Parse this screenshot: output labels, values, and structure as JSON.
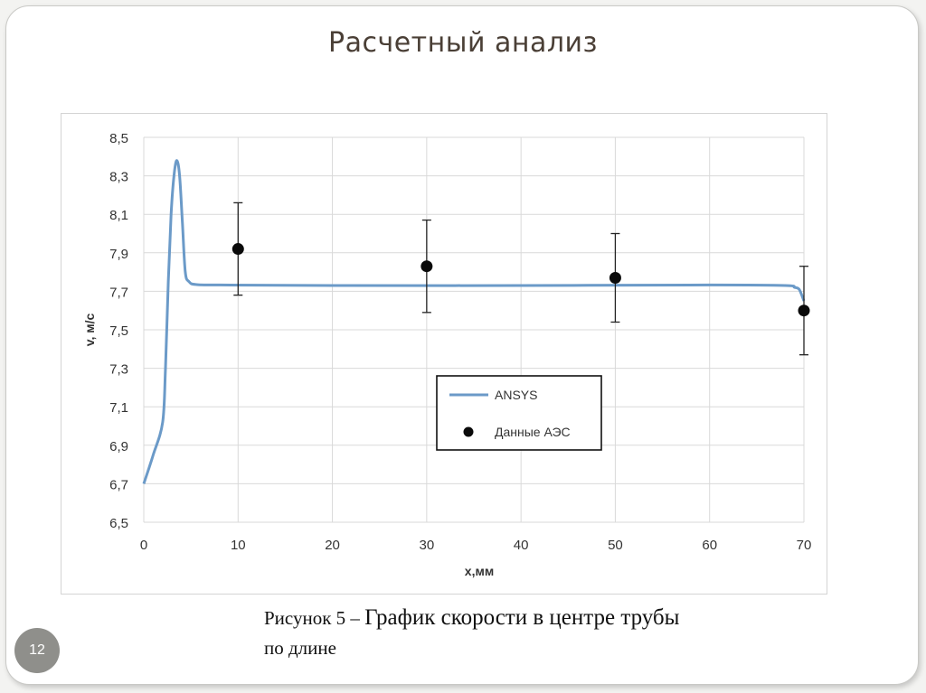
{
  "slide": {
    "title": "Расчетный анализ",
    "page_number": "12",
    "caption_prefix": "Рисунок 5 – ",
    "caption_main": "График скорости в центре трубы",
    "caption_line2": "по длине"
  },
  "colors": {
    "ansys_line": "#6b9ac8",
    "data_points": "#0a0a0a",
    "grid": "#d9d9d9",
    "axis_text": "#333333",
    "title_text": "#4a3f36"
  },
  "chart_data": {
    "type": "line",
    "title": "",
    "xlabel": "x,мм",
    "ylabel": "v, м/с",
    "xlim": [
      0,
      70
    ],
    "ylim": [
      6.5,
      8.5
    ],
    "x_ticks": [
      0,
      10,
      20,
      30,
      40,
      50,
      60,
      70
    ],
    "x_tick_labels": [
      "0",
      "10",
      "20",
      "30",
      "40",
      "50",
      "60",
      "70"
    ],
    "y_ticks": [
      6.5,
      6.7,
      6.9,
      7.1,
      7.3,
      7.5,
      7.7,
      7.9,
      8.1,
      8.3,
      8.5
    ],
    "y_tick_labels": [
      "6,5",
      "6,7",
      "6,9",
      "7,1",
      "7,3",
      "7,5",
      "7,7",
      "7,9",
      "8,1",
      "8,3",
      "8,5"
    ],
    "grid": true,
    "legend_position": "center-right",
    "series": [
      {
        "name": "ANSYS",
        "type": "line",
        "color": "#6b9ac8",
        "x": [
          0,
          1,
          2,
          2.3,
          2.6,
          2.9,
          3.2,
          3.5,
          3.8,
          4.1,
          4.4,
          4.8,
          5.5,
          8,
          20,
          40,
          60,
          68,
          69,
          69.5,
          70
        ],
        "y": [
          6.7,
          6.85,
          7.02,
          7.3,
          7.75,
          8.1,
          8.3,
          8.38,
          8.3,
          8.05,
          7.8,
          7.75,
          7.735,
          7.733,
          7.73,
          7.73,
          7.733,
          7.73,
          7.72,
          7.71,
          7.65
        ]
      },
      {
        "name": "Данные АЭС",
        "type": "scatter",
        "color": "#0a0a0a",
        "x": [
          10,
          30,
          50,
          70
        ],
        "y": [
          7.92,
          7.83,
          7.77,
          7.6
        ],
        "error_low": [
          7.68,
          7.59,
          7.54,
          7.37
        ],
        "error_high": [
          8.16,
          8.07,
          8.0,
          7.83
        ]
      }
    ]
  }
}
